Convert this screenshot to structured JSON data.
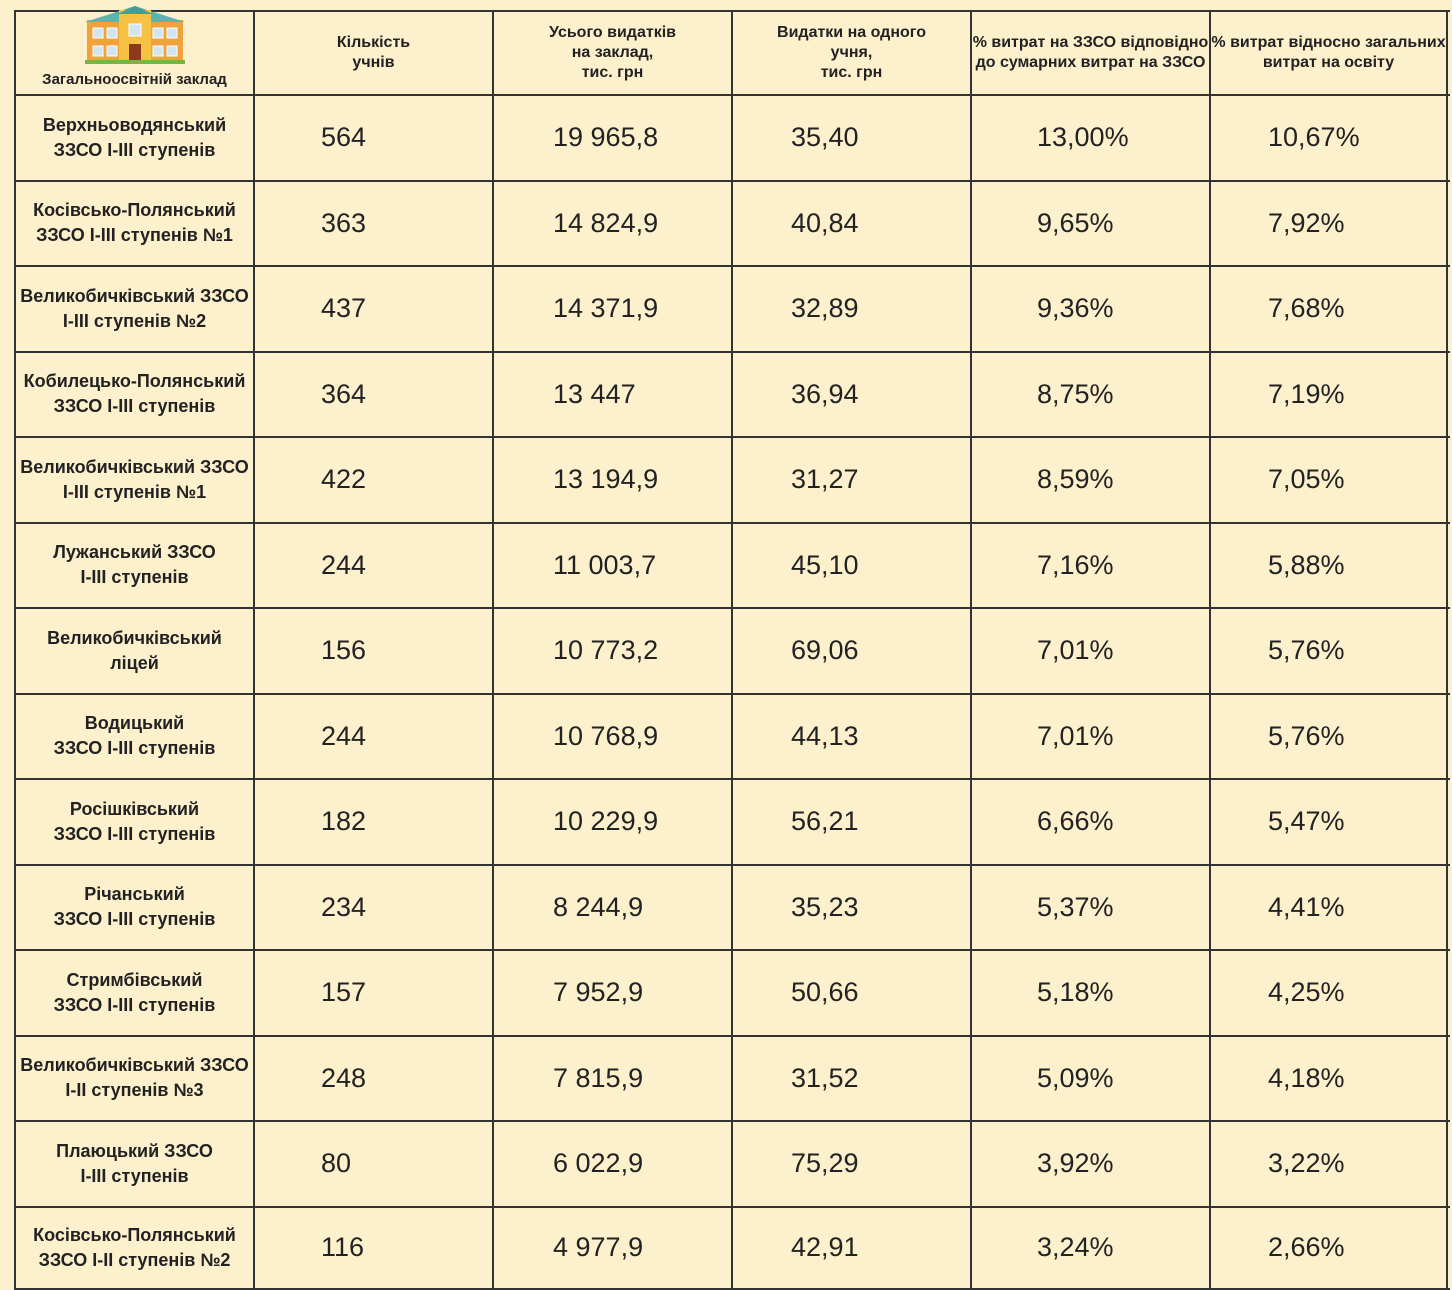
{
  "table": {
    "header": [
      "Загальноосвітній заклад",
      "Кількість\nучнів",
      "Усього видатків\nна заклад,\nтис. грн",
      "Видатки на одного\nучня,\nтис. грн",
      "% витрат на ЗЗСО відповідно\nдо сумарних витрат на ЗЗСО",
      "% витрат відносно загальних\nвитрат на освіту"
    ],
    "rows": [
      [
        "Верхньоводянський\nЗЗСО І-ІІІ ступенів",
        "564",
        "19 965,8",
        "35,40",
        "13,00%",
        "10,67%"
      ],
      [
        "Косівсько-Полянський\nЗЗСО І-ІІІ ступенів №1",
        "363",
        "14 824,9",
        "40,84",
        "9,65%",
        "7,92%"
      ],
      [
        "Великобичківський ЗЗСО\nІ-ІІІ ступенів №2",
        "437",
        "14 371,9",
        "32,89",
        "9,36%",
        "7,68%"
      ],
      [
        "Кобилецько-Полянський\nЗЗСО І-ІІІ ступенів",
        "364",
        "13 447",
        "36,94",
        "8,75%",
        "7,19%"
      ],
      [
        "Великобичківський ЗЗСО\nІ-ІІІ ступенів №1",
        "422",
        "13 194,9",
        "31,27",
        "8,59%",
        "7,05%"
      ],
      [
        "Лужанський ЗЗСО\nІ-ІІІ ступенів",
        "244",
        "11 003,7",
        "45,10",
        "7,16%",
        "5,88%"
      ],
      [
        "Великобичківський\nліцей",
        "156",
        "10 773,2",
        "69,06",
        "7,01%",
        "5,76%"
      ],
      [
        "Водицький\nЗЗСО І-ІІІ ступенів",
        "244",
        "10 768,9",
        "44,13",
        "7,01%",
        "5,76%"
      ],
      [
        "Росішківський\nЗЗСО І-ІІІ ступенів",
        "182",
        "10 229,9",
        "56,21",
        "6,66%",
        "5,47%"
      ],
      [
        "Річанський\nЗЗСО І-ІІІ ступенів",
        "234",
        "8 244,9",
        "35,23",
        "5,37%",
        "4,41%"
      ],
      [
        "Стримбівський\nЗЗСО І-ІІІ ступенів",
        "157",
        "7 952,9",
        "50,66",
        "5,18%",
        "4,25%"
      ],
      [
        "Великобичківський ЗЗСО\nІ-ІІ ступенів  №3",
        "248",
        "7 815,9",
        "31,52",
        "5,09%",
        "4,18%"
      ],
      [
        "Плаюцький ЗЗСО\nІ-ІІІ ступенів",
        "80",
        "6 022,9",
        "75,29",
        "3,92%",
        "3,22%"
      ],
      [
        "Косівсько-Полянський\nЗЗСО І-ІІ ступенів №2",
        "116",
        "4 977,9",
        "42,91",
        "3,24%",
        "2,66%"
      ]
    ]
  }
}
